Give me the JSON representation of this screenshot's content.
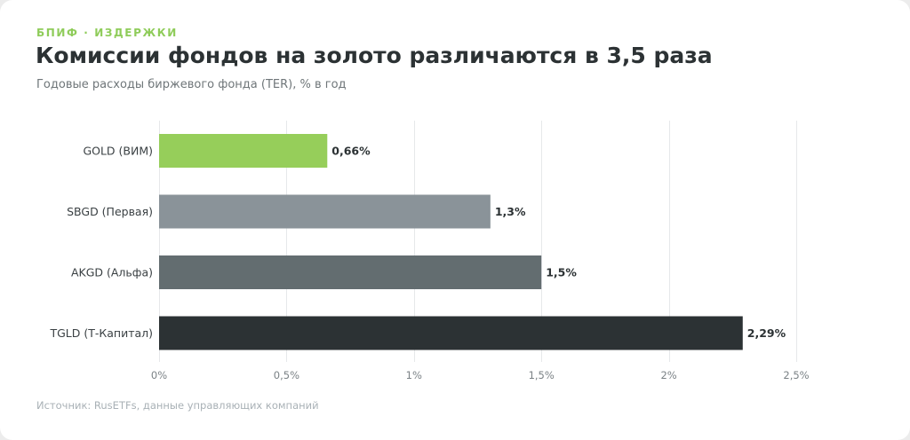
{
  "header": {
    "eyebrow": "БПИФ · ИЗДЕРЖКИ",
    "title": "Комиссии фондов на золото различаются в 3,5 раза",
    "subtitle": "Годовые расходы биржевого фонда (TER), % в год"
  },
  "footer": {
    "source": "Источник: RusETFs, данные управляющих компаний"
  },
  "chart_data": {
    "type": "bar",
    "orientation": "horizontal",
    "categories": [
      "GOLD (ВИМ)",
      "SBGD (Первая)",
      "AKGD (Альфа)",
      "TGLD (Т-Капитал)"
    ],
    "values": [
      0.66,
      1.3,
      1.5,
      2.29
    ],
    "value_labels": [
      "0,66%",
      "1,3%",
      "1,5%",
      "2,29%"
    ],
    "colors": [
      "#96ce5a",
      "#8a9399",
      "#636d70",
      "#2c3234"
    ],
    "xlim": [
      0,
      2.5
    ],
    "xticks": [
      0,
      0.5,
      1,
      1.5,
      2,
      2.5
    ],
    "xtick_labels": [
      "0%",
      "0,5%",
      "1%",
      "1,5%",
      "2%",
      "2,5%"
    ],
    "grid": true
  }
}
